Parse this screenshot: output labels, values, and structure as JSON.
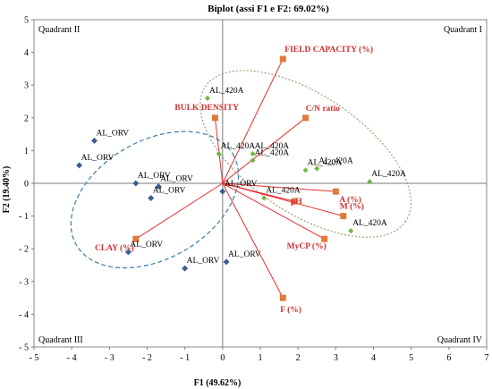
{
  "chart_data": {
    "type": "scatter",
    "title": "Biplot (assi F1 e F2: 69.02%)",
    "xlabel": "F1 (49.62%)",
    "ylabel": "F2 (19.40%)",
    "xlim": [
      -5,
      7
    ],
    "ylim": [
      -5,
      5
    ],
    "xticks": [
      "- 5",
      "- 4",
      "- 3",
      "- 2",
      "- 1",
      "0",
      "1",
      "2",
      "3",
      "4",
      "5",
      "6",
      "7"
    ],
    "yticks": [
      "5",
      "4",
      "3",
      "2",
      "1",
      "0",
      "- 1",
      "- 2",
      "- 3",
      "- 4",
      "- 5"
    ],
    "xtick_values": [
      -5,
      -4,
      -3,
      -2,
      -1,
      0,
      1,
      2,
      3,
      4,
      5,
      6,
      7
    ],
    "ytick_values": [
      5,
      4,
      3,
      2,
      1,
      0,
      -1,
      -2,
      -3,
      -4,
      -5
    ],
    "grid": false,
    "quadrants": [
      {
        "label": "Quadrant II",
        "x": -5,
        "y": 5
      },
      {
        "label": "Quadrant I",
        "x": 7,
        "y": 5
      },
      {
        "label": "Quadrant III",
        "x": -5,
        "y": -5
      },
      {
        "label": "Quadrant IV",
        "x": 7,
        "y": -5
      }
    ],
    "observations": [
      {
        "label": "AL_ORV",
        "group": "AL_ORV",
        "x": -3.4,
        "y": 1.3
      },
      {
        "label": "AL_ORV",
        "group": "AL_ORV",
        "x": -3.8,
        "y": 0.55
      },
      {
        "label": "AL_ORV",
        "group": "AL_ORV",
        "x": -2.3,
        "y": 0.0
      },
      {
        "label": "AL_ORV",
        "group": "AL_ORV",
        "x": -1.7,
        "y": -0.1
      },
      {
        "label": "AL_ORV",
        "group": "AL_ORV",
        "x": -1.9,
        "y": -0.45
      },
      {
        "label": "AL_ORV",
        "group": "AL_ORV",
        "x": 0.0,
        "y": -0.25
      },
      {
        "label": "AL_ORV",
        "group": "AL_ORV",
        "x": -2.5,
        "y": -2.1
      },
      {
        "label": "AL_ORV",
        "group": "AL_ORV",
        "x": -1.0,
        "y": -2.6
      },
      {
        "label": "AL_ORV",
        "group": "AL_ORV",
        "x": 0.1,
        "y": -2.4
      },
      {
        "label": "AL_420A",
        "group": "AL_420A",
        "x": -0.4,
        "y": 2.6
      },
      {
        "label": "AL_420A",
        "group": "AL_420A",
        "x": -0.1,
        "y": 0.9
      },
      {
        "label": "AL_420A",
        "group": "AL_420A",
        "x": 0.8,
        "y": 0.9
      },
      {
        "label": "AL_420A",
        "group": "AL_420A",
        "x": 0.8,
        "y": 0.7
      },
      {
        "label": "AL_420A",
        "group": "AL_420A",
        "x": 2.2,
        "y": 0.4
      },
      {
        "label": "AL_420A",
        "group": "AL_420A",
        "x": 2.5,
        "y": 0.45
      },
      {
        "label": "AL_420A",
        "group": "AL_420A",
        "x": 3.9,
        "y": 0.05
      },
      {
        "label": "AL_420A",
        "group": "AL_420A",
        "x": 1.1,
        "y": -0.45
      },
      {
        "label": "AL_420A",
        "group": "AL_420A",
        "x": 3.4,
        "y": -1.45
      }
    ],
    "variables": [
      {
        "label": "FIELD CAPACITY  (%)",
        "x": 1.6,
        "y": 3.8
      },
      {
        "label": "C/N  ratio",
        "x": 2.2,
        "y": 2.0
      },
      {
        "label": "BULK DENSITY",
        "x": -0.2,
        "y": 2.0
      },
      {
        "label": "A (%)",
        "x": 3.0,
        "y": -0.25
      },
      {
        "label": "pH",
        "x": 1.9,
        "y": -0.55
      },
      {
        "label": "M (%)",
        "x": 3.2,
        "y": -1.0
      },
      {
        "label": "MyCP (%)",
        "x": 2.7,
        "y": -1.7
      },
      {
        "label": "CLAY (%)",
        "x": -2.3,
        "y": -1.7
      },
      {
        "label": "F (%)",
        "x": 1.6,
        "y": -3.5
      }
    ],
    "ellipses": [
      {
        "group": "AL_ORV",
        "cx": -1.8,
        "cy": -0.5,
        "rx": 2.4,
        "ry": 1.8,
        "angle_deg": 30
      },
      {
        "group": "AL_420A",
        "cx": 2.2,
        "cy": 0.9,
        "rx": 3.2,
        "ry": 1.8,
        "angle_deg": -34
      }
    ],
    "colors": {
      "AL_ORV": "#3b5f93",
      "AL_420A": "#6fb63f",
      "variables": "#e07a38",
      "vectors": "#e53030",
      "variable_labels": "#d03030",
      "ellipse_ORV": "#3d7ca8",
      "ellipse_420A": "#9aa37a"
    }
  }
}
